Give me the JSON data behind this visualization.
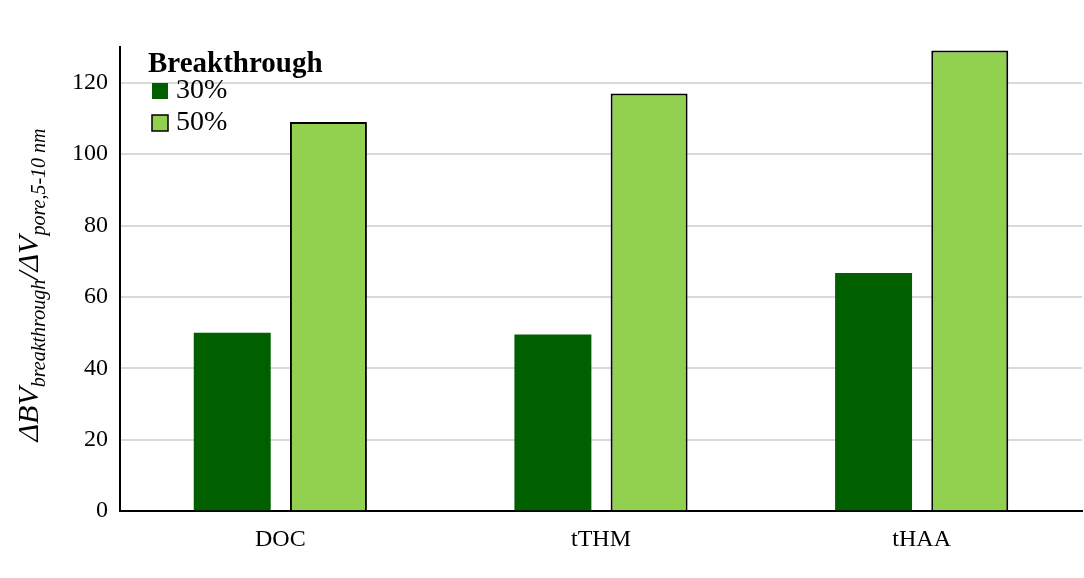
{
  "chart_data": {
    "type": "bar",
    "ylabel": "ΔBV$_{breakthrough}$/ΔV$_{pore,5-10 nm}$",
    "legend_title": "Breakthrough",
    "categories": [
      "DOC",
      "tTHM",
      "tHAA"
    ],
    "series": [
      {
        "name": "30%",
        "color": "#006000",
        "values": [
          50,
          49.5,
          66.7
        ]
      },
      {
        "name": "50%",
        "color": "#92d050",
        "values": [
          109,
          117,
          129
        ]
      }
    ],
    "ylim": [
      0,
      130
    ],
    "yticks": [
      0,
      20,
      40,
      60,
      80,
      100,
      120
    ],
    "grid": "y",
    "legend": "top left"
  }
}
